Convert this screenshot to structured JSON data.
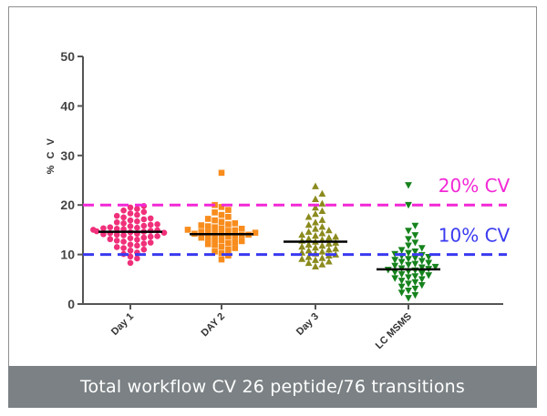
{
  "caption": "Total workflow CV 26 peptide/76 transitions",
  "chart_data": {
    "type": "scatter",
    "subtype": "dot-plot with mean lines",
    "title": "",
    "xlabel": "",
    "ylabel": "% C V",
    "ylim": [
      0,
      50
    ],
    "yticks": [
      0,
      10,
      20,
      30,
      40,
      50
    ],
    "categories": [
      "Day 1",
      "DAY 2",
      "Day 3",
      "LC MSMS"
    ],
    "series": [
      {
        "name": "Day 1",
        "marker": "circle",
        "color": "#f0307a",
        "mean": 14.6,
        "values": [
          8.3,
          9.2,
          9.6,
          10.1,
          10.4,
          10.8,
          11.0,
          11.3,
          11.5,
          11.8,
          12.0,
          12.2,
          12.4,
          12.6,
          12.8,
          13.0,
          13.1,
          13.3,
          13.4,
          13.6,
          13.7,
          13.9,
          14.0,
          14.1,
          14.2,
          14.3,
          14.4,
          14.5,
          14.6,
          14.7,
          14.8,
          14.9,
          15.0,
          15.1,
          15.2,
          15.3,
          15.4,
          15.5,
          15.7,
          15.8,
          16.0,
          16.1,
          16.3,
          16.5,
          16.7,
          16.9,
          17.1,
          17.3,
          17.5,
          17.8,
          18.0,
          18.3,
          18.6,
          18.9,
          19.2,
          19.5,
          19.8
        ]
      },
      {
        "name": "DAY 2",
        "marker": "square",
        "color": "#f88c1c",
        "mean": 14.1,
        "values": [
          9.0,
          9.8,
          10.3,
          10.6,
          11.0,
          11.3,
          11.6,
          11.9,
          12.1,
          12.3,
          12.5,
          12.7,
          12.9,
          13.1,
          13.3,
          13.4,
          13.6,
          13.7,
          13.9,
          14.0,
          14.1,
          14.2,
          14.3,
          14.4,
          14.5,
          14.6,
          14.8,
          14.9,
          15.0,
          15.2,
          15.3,
          15.5,
          15.7,
          15.9,
          16.1,
          16.3,
          16.6,
          16.9,
          17.2,
          17.6,
          18.0,
          18.5,
          19.0,
          19.6,
          20.0,
          26.5
        ]
      },
      {
        "name": "Day 3",
        "marker": "triangle-up",
        "color": "#8b8a1e",
        "mean": 12.6,
        "values": [
          7.6,
          8.0,
          8.3,
          8.6,
          8.9,
          9.1,
          9.3,
          9.5,
          9.8,
          10.0,
          10.2,
          10.4,
          10.6,
          10.8,
          11.0,
          11.2,
          11.4,
          11.6,
          11.8,
          12.0,
          12.2,
          12.4,
          12.6,
          12.8,
          13.0,
          13.2,
          13.4,
          13.6,
          13.8,
          14.0,
          14.3,
          14.6,
          14.9,
          15.2,
          15.6,
          16.0,
          16.5,
          17.0,
          17.6,
          18.2,
          18.8,
          19.5,
          20.3,
          21.2,
          22.3,
          23.8
        ]
      },
      {
        "name": "LC MSMS",
        "marker": "triangle-down",
        "color": "#16831d",
        "mean": 7.0,
        "values": [
          1.2,
          1.8,
          2.3,
          2.7,
          3.1,
          3.5,
          3.8,
          4.1,
          4.4,
          4.7,
          5.0,
          5.2,
          5.4,
          5.6,
          5.8,
          6.0,
          6.2,
          6.4,
          6.6,
          6.8,
          6.9,
          7.1,
          7.2,
          7.4,
          7.5,
          7.7,
          7.9,
          8.1,
          8.3,
          8.5,
          8.7,
          8.9,
          9.1,
          9.3,
          9.5,
          9.7,
          9.9,
          10.1,
          10.3,
          10.6,
          10.9,
          11.3,
          11.8,
          12.4,
          13.1,
          13.9,
          14.8,
          15.8,
          20.0,
          24.0
        ]
      }
    ],
    "reference_lines": [
      {
        "label": "20% CV",
        "value": 20,
        "color": "#f227d6"
      },
      {
        "label": "10% CV",
        "value": 10,
        "color": "#3a3af0"
      }
    ],
    "grid": false
  }
}
